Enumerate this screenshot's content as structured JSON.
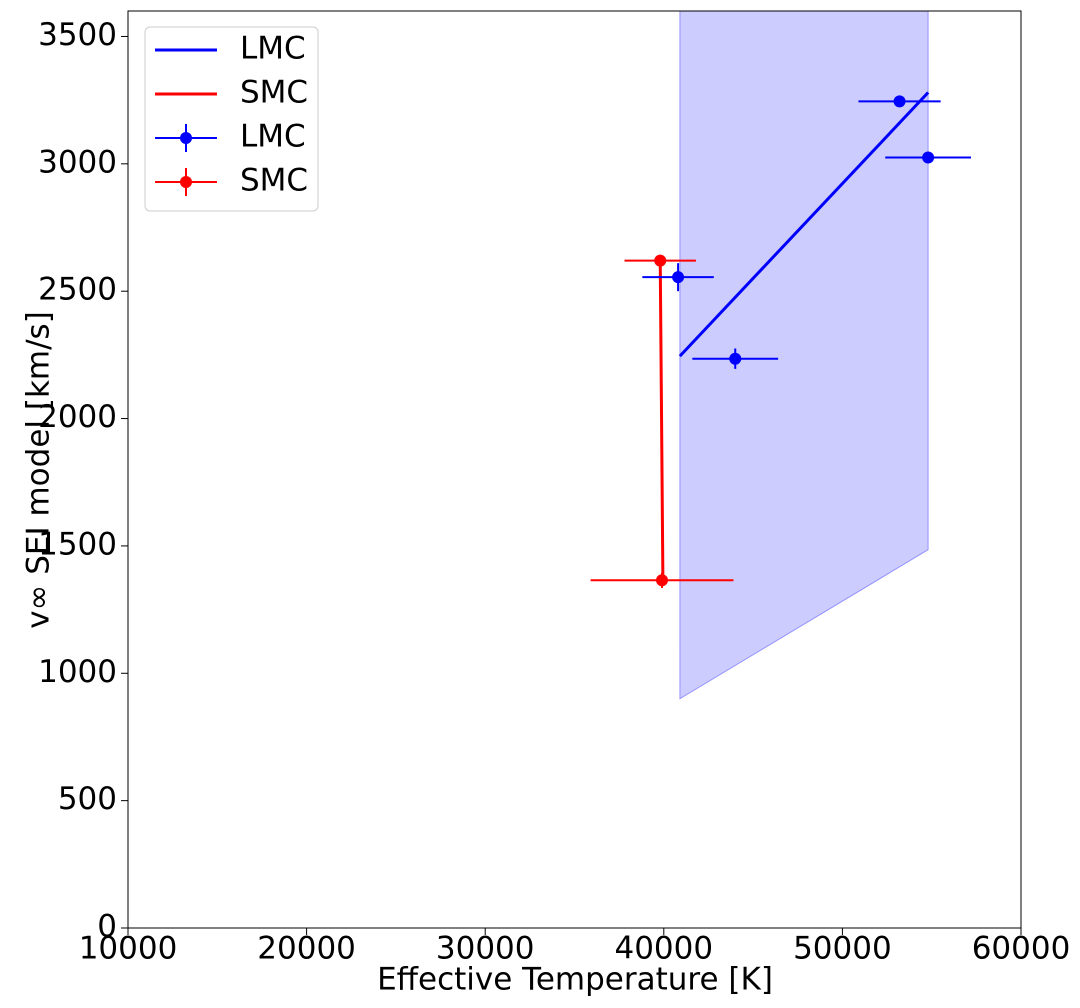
{
  "chart_data": {
    "type": "line",
    "xlabel": "Effective Temperature [K]",
    "ylabel": "v∞ SEI model [km/s]",
    "xlim": [
      10000,
      60000
    ],
    "xticks": [
      10000,
      20000,
      30000,
      40000,
      50000,
      60000
    ],
    "ylim": [
      0,
      3600
    ],
    "yticks": [
      0,
      500,
      1000,
      1500,
      2000,
      2500,
      3000,
      3500
    ],
    "legend": "upper left",
    "fill": {
      "color": "#0000ff",
      "x": [
        40900,
        54800
      ],
      "upper": [
        3600,
        3600
      ],
      "lower": [
        900,
        1485
      ]
    },
    "series": [
      {
        "name": "LMC",
        "kind": "line",
        "color": "#0000ff",
        "x": [
          40900,
          54800
        ],
        "values": [
          2245,
          3280
        ]
      },
      {
        "name": "SMC",
        "kind": "line",
        "color": "#ff0000",
        "x": [
          39800,
          39950
        ],
        "values": [
          2620,
          1365
        ]
      },
      {
        "name": "LMC",
        "kind": "errorbar",
        "color": "#0000ff",
        "x": [
          53200,
          54800,
          40800,
          44000
        ],
        "values": [
          3245,
          3025,
          2555,
          2235
        ],
        "xerr": [
          2300,
          2400,
          2000,
          2400
        ],
        "yerr": [
          10,
          10,
          55,
          40
        ]
      },
      {
        "name": "SMC",
        "kind": "errorbar",
        "color": "#ff0000",
        "x": [
          39800,
          39900
        ],
        "values": [
          2620,
          1365
        ],
        "xerr": [
          2000,
          4000
        ],
        "yerr": [
          10,
          30
        ]
      }
    ]
  }
}
